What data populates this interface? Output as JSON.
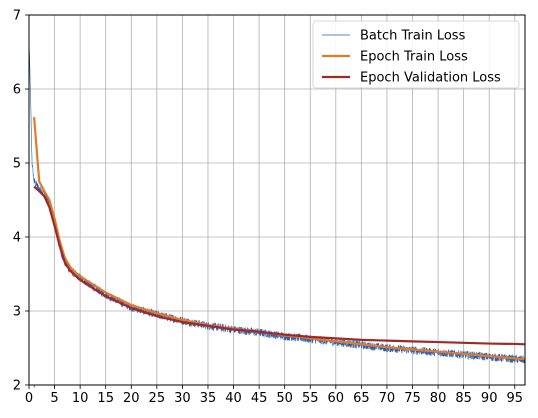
{
  "chart_data": {
    "type": "line",
    "title": "",
    "xlabel": "",
    "ylabel": "",
    "xlim": [
      0,
      97
    ],
    "ylim": [
      2,
      7
    ],
    "x_ticks": [
      0,
      5,
      10,
      15,
      20,
      25,
      30,
      35,
      40,
      45,
      50,
      55,
      60,
      65,
      70,
      75,
      80,
      85,
      90,
      95
    ],
    "x_minor_ticks": [
      1
    ],
    "y_ticks": [
      2,
      3,
      4,
      5,
      6,
      7
    ],
    "grid": true,
    "legend_position": "top-right",
    "series": [
      {
        "name": "Batch Train Loss",
        "color": "#2e5fa8",
        "style": "thin-noisy",
        "x": [
          0.0,
          0.3,
          0.6,
          1,
          2,
          3,
          4,
          5,
          6,
          7,
          8,
          10,
          12,
          15,
          20,
          25,
          30,
          35,
          40,
          45,
          50,
          55,
          60,
          65,
          70,
          75,
          80,
          85,
          90,
          95,
          97
        ],
        "y": [
          6.7,
          5.9,
          5.0,
          4.75,
          4.65,
          4.6,
          4.45,
          4.2,
          3.85,
          3.65,
          3.55,
          3.45,
          3.35,
          3.22,
          3.05,
          2.95,
          2.87,
          2.8,
          2.75,
          2.71,
          2.66,
          2.62,
          2.58,
          2.54,
          2.5,
          2.47,
          2.44,
          2.41,
          2.38,
          2.35,
          2.34
        ]
      },
      {
        "name": "Epoch Train Loss",
        "color": "#e07b2e",
        "x": [
          1,
          2,
          3,
          4,
          5,
          6,
          7,
          8,
          9,
          10,
          12,
          15,
          20,
          25,
          30,
          35,
          40,
          45,
          50,
          55,
          60,
          65,
          70,
          75,
          80,
          85,
          90,
          95,
          97
        ],
        "y": [
          5.62,
          4.75,
          4.62,
          4.5,
          4.25,
          3.95,
          3.72,
          3.6,
          3.52,
          3.47,
          3.38,
          3.25,
          3.08,
          2.97,
          2.88,
          2.81,
          2.76,
          2.72,
          2.67,
          2.63,
          2.59,
          2.55,
          2.51,
          2.48,
          2.45,
          2.42,
          2.39,
          2.36,
          2.35
        ]
      },
      {
        "name": "Epoch Validation Loss",
        "color": "#9b2a2a",
        "x": [
          1,
          2,
          3,
          4,
          5,
          6,
          7,
          8,
          9,
          10,
          12,
          15,
          20,
          25,
          30,
          35,
          40,
          45,
          50,
          55,
          60,
          65,
          70,
          75,
          80,
          85,
          90,
          95,
          97
        ],
        "y": [
          4.68,
          4.62,
          4.55,
          4.4,
          4.15,
          3.88,
          3.66,
          3.55,
          3.48,
          3.42,
          3.33,
          3.2,
          3.04,
          2.93,
          2.85,
          2.8,
          2.75,
          2.72,
          2.68,
          2.65,
          2.63,
          2.61,
          2.6,
          2.59,
          2.58,
          2.57,
          2.56,
          2.555,
          2.55
        ]
      }
    ]
  }
}
